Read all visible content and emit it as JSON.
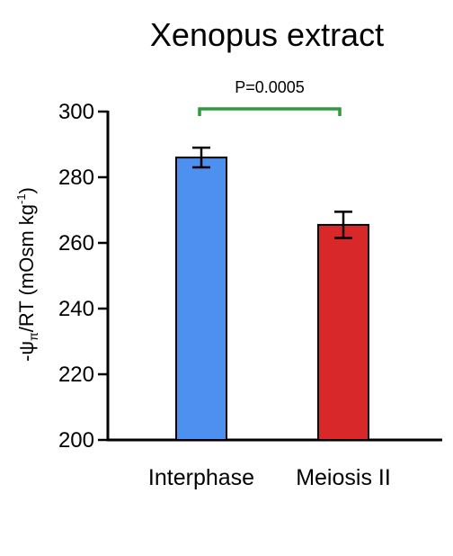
{
  "chart_data": {
    "type": "bar",
    "title": "Xenopus extract",
    "ylabel": {
      "prefix": "-ψ",
      "subscript": "π",
      "middle": "/RT (mOsm kg",
      "superscript": "-1",
      "suffix": ")"
    },
    "xlabel": "",
    "categories": [
      "Interphase",
      "Meiosis II"
    ],
    "values": [
      286,
      265.5
    ],
    "errors": [
      3,
      4
    ],
    "colors": [
      "#4d90f0",
      "#d9282a"
    ],
    "ylim": [
      200,
      300
    ],
    "yticks": [
      200,
      220,
      240,
      260,
      280,
      300
    ],
    "grid": false,
    "significance": {
      "label": "P=0.0005",
      "from": 0,
      "to": 1,
      "color": "#2e9a3c"
    }
  }
}
